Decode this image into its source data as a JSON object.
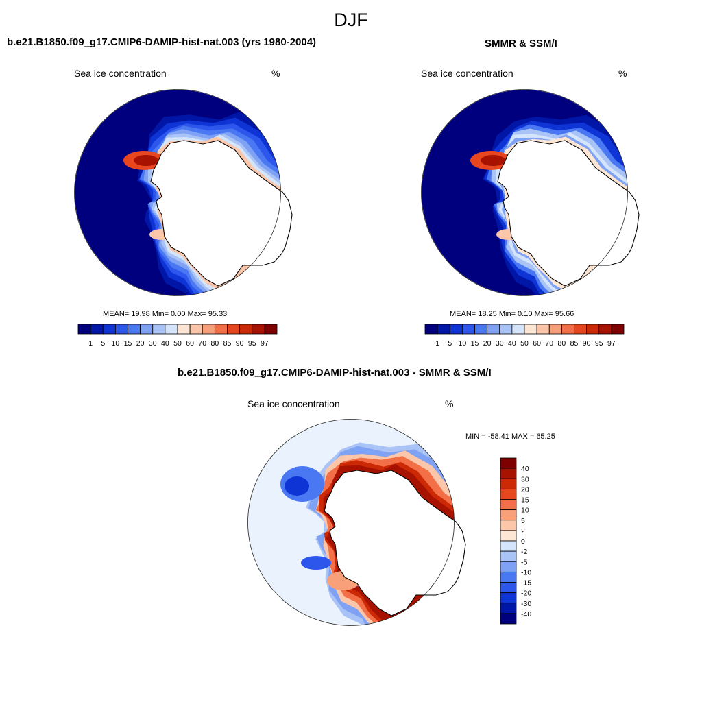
{
  "figure": {
    "title": "DJF"
  },
  "panels": {
    "model": {
      "title": "b.e21.B1850.f09_g17.CMIP6-DAMIP-hist-nat.003 (yrs 1980-2004)",
      "left_label": "Sea ice concentration",
      "right_label": "%",
      "stats": "MEAN=  19.98  Min=   0.00  Max=  95.33"
    },
    "obs": {
      "title": "SMMR & SSM/I",
      "left_label": "Sea ice concentration",
      "right_label": "%",
      "stats": "MEAN=  18.25  Min=   0.10  Max=  95.66"
    },
    "diff": {
      "title": "b.e21.B1850.f09_g17.CMIP6-DAMIP-hist-nat.003 - SMMR & SSM/I",
      "left_label": "Sea ice concentration",
      "right_label": "%",
      "minmax": "MIN = -58.41 MAX =  65.25"
    }
  },
  "chart_data": [
    {
      "type": "heatmap",
      "projection": "south polar stereographic",
      "title": "b.e21.B1850.f09_g17.CMIP6-DAMIP-hist-nat.003 (yrs 1980-2004)",
      "variable": "Sea ice concentration",
      "units": "%",
      "mean": 19.98,
      "min": 0.0,
      "max": 95.33,
      "levels": [
        1,
        5,
        10,
        15,
        20,
        30,
        40,
        50,
        60,
        70,
        80,
        85,
        90,
        95,
        97
      ],
      "colors": [
        "#00007f",
        "#0016a6",
        "#0f34d6",
        "#2c56ec",
        "#4a78f2",
        "#7fa2f4",
        "#a9c3f6",
        "#d4e5fb",
        "#fde6d4",
        "#fbc6a9",
        "#f8a07a",
        "#f36f48",
        "#e8461f",
        "#cc2a06",
        "#a81200",
        "#7f0000"
      ]
    },
    {
      "type": "heatmap",
      "projection": "south polar stereographic",
      "title": "SMMR & SSM/I",
      "variable": "Sea ice concentration",
      "units": "%",
      "mean": 18.25,
      "min": 0.1,
      "max": 95.66,
      "levels": [
        1,
        5,
        10,
        15,
        20,
        30,
        40,
        50,
        60,
        70,
        80,
        85,
        90,
        95,
        97
      ],
      "colors": [
        "#00007f",
        "#0016a6",
        "#0f34d6",
        "#2c56ec",
        "#4a78f2",
        "#7fa2f4",
        "#a9c3f6",
        "#d4e5fb",
        "#fde6d4",
        "#fbc6a9",
        "#f8a07a",
        "#f36f48",
        "#e8461f",
        "#cc2a06",
        "#a81200",
        "#7f0000"
      ]
    },
    {
      "type": "heatmap",
      "projection": "south polar stereographic",
      "title": "b.e21.B1850.f09_g17.CMIP6-DAMIP-hist-nat.003 - SMMR & SSM/I",
      "variable": "Sea ice concentration",
      "units": "%",
      "min": -58.41,
      "max": 65.25,
      "levels": [
        40,
        30,
        20,
        15,
        10,
        5,
        2,
        0,
        -2,
        -5,
        -10,
        -15,
        -20,
        -30,
        -40
      ],
      "colors": [
        "#7f0000",
        "#a81200",
        "#cc2a06",
        "#e8461f",
        "#f36f48",
        "#f8a07a",
        "#fbc6a9",
        "#fde6d4",
        "#d4e5fb",
        "#a9c3f6",
        "#7fa2f4",
        "#4a78f2",
        "#2c56ec",
        "#0f34d6",
        "#0016a6",
        "#00007f"
      ]
    }
  ]
}
